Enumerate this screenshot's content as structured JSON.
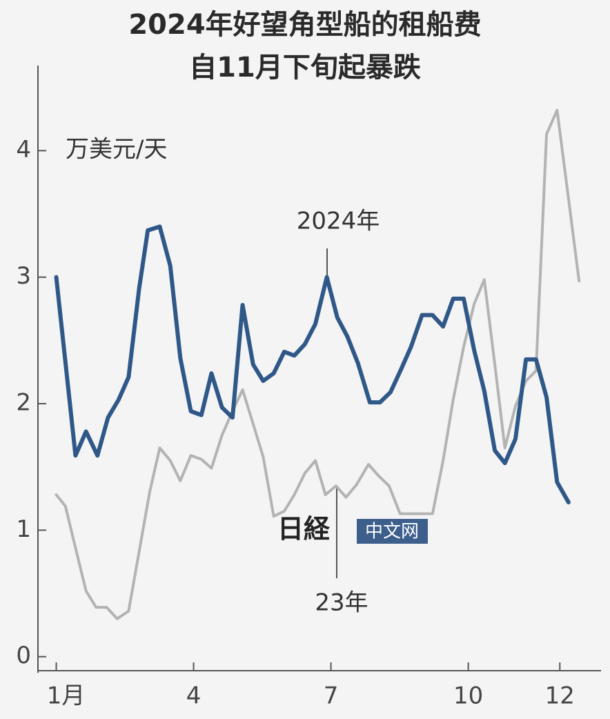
{
  "chart_data": {
    "type": "line",
    "title": "2024年好望角型船的租船费",
    "subtitle": "自11月下旬起暴跌",
    "y_label": "万美元/天",
    "annotations": [
      "2024年",
      "23年"
    ],
    "watermark": [
      "日経",
      "中文网"
    ],
    "xlim": [
      0.6,
      12.9
    ],
    "xticks": [
      {
        "value": 1,
        "label": "1月"
      },
      4,
      7,
      10,
      12
    ],
    "ylim": [
      -0.1,
      4.7
    ],
    "yticks": [
      0,
      1,
      2,
      3,
      4
    ],
    "series": [
      {
        "name": "23年",
        "color": "#b3b3b3",
        "x": [
          1.0,
          1.2,
          1.42,
          1.65,
          1.87,
          2.1,
          2.33,
          2.58,
          2.81,
          3.04,
          3.26,
          3.49,
          3.71,
          3.94,
          4.17,
          4.39,
          4.62,
          4.85,
          5.07,
          5.3,
          5.52,
          5.75,
          5.98,
          6.2,
          6.43,
          6.66,
          6.88,
          7.11,
          7.33,
          7.56,
          7.82,
          8.04,
          8.27,
          8.51,
          8.99,
          9.22,
          9.45,
          9.67,
          9.9,
          10.13,
          10.35,
          10.58,
          10.8,
          11.03,
          11.26,
          11.48,
          11.71,
          11.94,
          12.19,
          12.42
        ],
        "values": [
          1.28,
          1.19,
          0.86,
          0.52,
          0.39,
          0.39,
          0.3,
          0.36,
          0.83,
          1.3,
          1.65,
          1.55,
          1.39,
          1.59,
          1.56,
          1.49,
          1.75,
          1.94,
          2.11,
          1.84,
          1.58,
          1.11,
          1.15,
          1.28,
          1.45,
          1.55,
          1.28,
          1.35,
          1.26,
          1.36,
          1.52,
          1.43,
          1.35,
          1.13,
          1.13,
          1.13,
          1.55,
          2.03,
          2.45,
          2.79,
          2.98,
          2.31,
          1.65,
          1.98,
          2.18,
          2.26,
          4.13,
          4.32,
          3.62,
          2.97
        ]
      },
      {
        "name": "2024年",
        "color": "#2f5888",
        "x": [
          1.0,
          1.42,
          1.65,
          1.9,
          2.13,
          2.36,
          2.58,
          2.81,
          3.0,
          3.26,
          3.49,
          3.71,
          3.94,
          4.17,
          4.39,
          4.62,
          4.85,
          5.07,
          5.3,
          5.52,
          5.75,
          5.98,
          6.2,
          6.43,
          6.66,
          6.91,
          7.14,
          7.36,
          7.59,
          7.85,
          8.07,
          8.3,
          8.53,
          8.75,
          8.99,
          9.22,
          9.45,
          9.67,
          9.9,
          10.13,
          10.35,
          10.58,
          10.8,
          11.03,
          11.26,
          11.48,
          11.71,
          11.94,
          12.19
        ],
        "values": [
          3.0,
          1.59,
          1.78,
          1.59,
          1.89,
          2.03,
          2.21,
          2.91,
          3.37,
          3.4,
          3.09,
          2.36,
          1.94,
          1.91,
          2.24,
          1.97,
          1.89,
          2.78,
          2.31,
          2.18,
          2.24,
          2.41,
          2.38,
          2.47,
          2.63,
          3.0,
          2.68,
          2.53,
          2.32,
          2.01,
          2.01,
          2.09,
          2.27,
          2.45,
          2.7,
          2.7,
          2.61,
          2.83,
          2.83,
          2.42,
          2.1,
          1.63,
          1.53,
          1.72,
          2.35,
          2.35,
          2.05,
          1.38,
          1.22
        ]
      }
    ]
  }
}
